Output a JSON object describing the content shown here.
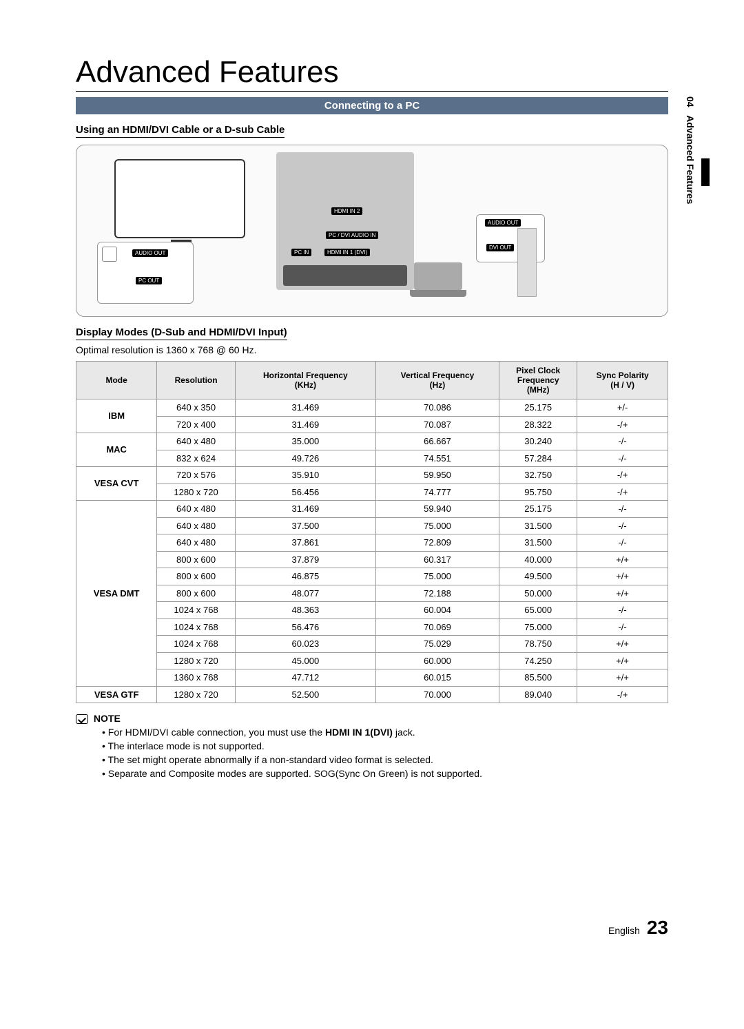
{
  "side_tab": {
    "chapter_num": "04",
    "chapter_label": "Advanced Features"
  },
  "title": "Advanced Features",
  "section_bar": "Connecting to a PC",
  "sub_heading_1": "Using an HDMI/DVI Cable or a D-sub Cable",
  "diagram": {
    "labels": [
      "HDMI IN 2",
      "PC / DVI AUDIO IN",
      "HDMI IN 1 (DVI)",
      "PC IN",
      "AUDIO OUT",
      "PC OUT",
      "DVI OUT"
    ],
    "background": "#fafafa",
    "border_color": "#999999"
  },
  "sub_heading_2": "Display Modes (D-Sub and HDMI/DVI Input)",
  "optimal_text": "Optimal resolution is 1360 x 768 @ 60 Hz.",
  "table": {
    "header_bg": "#e8e8e8",
    "border_color": "#999999",
    "columns": [
      "Mode",
      "Resolution",
      "Horizontal Frequency\n(KHz)",
      "Vertical Frequency\n(Hz)",
      "Pixel Clock\nFrequency\n(MHz)",
      "Sync Polarity\n(H / V)"
    ],
    "groups": [
      {
        "mode": "IBM",
        "rows": [
          [
            "640 x 350",
            "31.469",
            "70.086",
            "25.175",
            "+/-"
          ],
          [
            "720 x 400",
            "31.469",
            "70.087",
            "28.322",
            "-/+"
          ]
        ]
      },
      {
        "mode": "MAC",
        "rows": [
          [
            "640 x 480",
            "35.000",
            "66.667",
            "30.240",
            "-/-"
          ],
          [
            "832 x 624",
            "49.726",
            "74.551",
            "57.284",
            "-/-"
          ]
        ]
      },
      {
        "mode": "VESA CVT",
        "rows": [
          [
            "720 x 576",
            "35.910",
            "59.950",
            "32.750",
            "-/+"
          ],
          [
            "1280 x 720",
            "56.456",
            "74.777",
            "95.750",
            "-/+"
          ]
        ]
      },
      {
        "mode": "VESA DMT",
        "rows": [
          [
            "640 x 480",
            "31.469",
            "59.940",
            "25.175",
            "-/-"
          ],
          [
            "640 x 480",
            "37.500",
            "75.000",
            "31.500",
            "-/-"
          ],
          [
            "640 x 480",
            "37.861",
            "72.809",
            "31.500",
            "-/-"
          ],
          [
            "800 x 600",
            "37.879",
            "60.317",
            "40.000",
            "+/+"
          ],
          [
            "800 x 600",
            "46.875",
            "75.000",
            "49.500",
            "+/+"
          ],
          [
            "800 x 600",
            "48.077",
            "72.188",
            "50.000",
            "+/+"
          ],
          [
            "1024 x 768",
            "48.363",
            "60.004",
            "65.000",
            "-/-"
          ],
          [
            "1024 x 768",
            "56.476",
            "70.069",
            "75.000",
            "-/-"
          ],
          [
            "1024 x 768",
            "60.023",
            "75.029",
            "78.750",
            "+/+"
          ],
          [
            "1280 x 720",
            "45.000",
            "60.000",
            "74.250",
            "+/+"
          ],
          [
            "1360 x 768",
            "47.712",
            "60.015",
            "85.500",
            "+/+"
          ]
        ]
      },
      {
        "mode": "VESA GTF",
        "rows": [
          [
            "1280 x 720",
            "52.500",
            "70.000",
            "89.040",
            "-/+"
          ]
        ]
      }
    ]
  },
  "note_label": "NOTE",
  "notes": [
    {
      "pre": "For HDMI/DVI cable connection, you must use the ",
      "bold": "HDMI IN 1(DVI)",
      "post": " jack."
    },
    {
      "pre": "The interlace mode is not supported.",
      "bold": "",
      "post": ""
    },
    {
      "pre": "The set might operate abnormally if a non-standard video format is selected.",
      "bold": "",
      "post": ""
    },
    {
      "pre": "Separate and Composite modes are supported. SOG(Sync On Green) is not supported.",
      "bold": "",
      "post": ""
    }
  ],
  "footer": {
    "lang": "English",
    "page": "23"
  }
}
